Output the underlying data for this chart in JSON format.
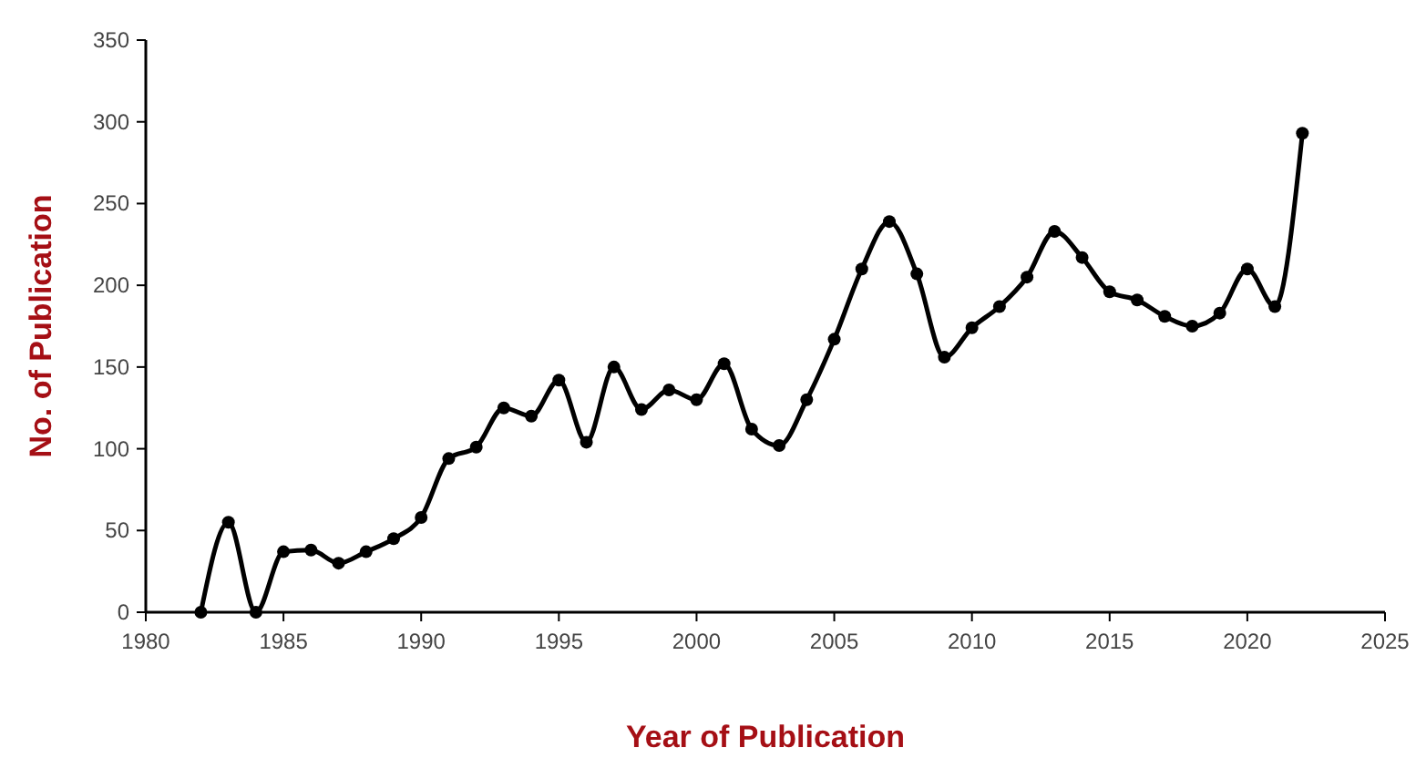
{
  "chart_data": {
    "type": "line",
    "xlabel": "Year of Publication",
    "ylabel": "No. of Publication",
    "x": [
      1982,
      1983,
      1984,
      1985,
      1986,
      1987,
      1988,
      1989,
      1990,
      1991,
      1992,
      1993,
      1994,
      1995,
      1996,
      1997,
      1998,
      1999,
      2000,
      2001,
      2002,
      2003,
      2004,
      2005,
      2006,
      2007,
      2008,
      2009,
      2010,
      2011,
      2012,
      2013,
      2014,
      2015,
      2016,
      2017,
      2018,
      2019,
      2020,
      2021,
      2022
    ],
    "series": [
      {
        "color": "#000000",
        "values": [
          0,
          55,
          0,
          37,
          38,
          30,
          37,
          45,
          58,
          94,
          101,
          125,
          120,
          142,
          104,
          150,
          124,
          136,
          130,
          152,
          112,
          102,
          130,
          167,
          210,
          239,
          207,
          156,
          174,
          187,
          205,
          233,
          217,
          196,
          191,
          181,
          175,
          183,
          210,
          187,
          293
        ]
      }
    ],
    "xlim": [
      1980,
      2025
    ],
    "xticks": [
      1980,
      1985,
      1990,
      1995,
      2000,
      2005,
      2010,
      2015,
      2020,
      2025
    ],
    "ylim": [
      0,
      350
    ],
    "yticks": [
      0,
      50,
      100,
      150,
      200,
      250,
      300,
      350
    ],
    "grid": false,
    "marker": "circle",
    "line_style": "solid"
  }
}
